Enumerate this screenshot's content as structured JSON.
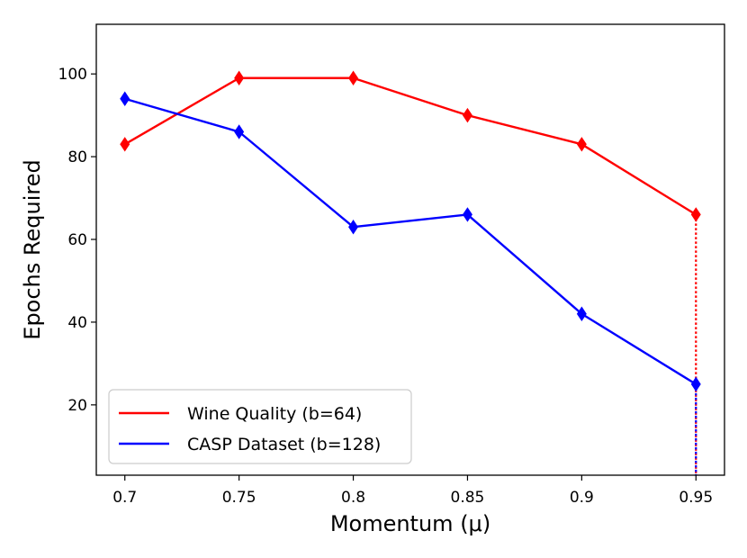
{
  "chart_data": {
    "type": "line",
    "title": "",
    "xlabel": "Momentum (μ)",
    "ylabel": "Epochs Required",
    "x": [
      0.7,
      0.75,
      0.8,
      0.85,
      0.9,
      0.95
    ],
    "x_tick_labels": [
      "0.7",
      "0.75",
      "0.8",
      "0.85",
      "0.9",
      "0.95"
    ],
    "y_ticks": [
      20,
      40,
      60,
      80,
      100
    ],
    "y_tick_labels": [
      "20",
      "40",
      "60",
      "80",
      "100"
    ],
    "xlim": [
      0.6875,
      0.9625
    ],
    "ylim": [
      3,
      112
    ],
    "grid": false,
    "legend_position": "lower-left",
    "series": [
      {
        "name": "Wine Quality (b=64)",
        "color": "#ff0000",
        "marker": "thin-diamond",
        "values": [
          83,
          99,
          99,
          90,
          83,
          66
        ],
        "dropline_at_last": true
      },
      {
        "name": "CASP Dataset (b=128)",
        "color": "#0000ff",
        "marker": "thin-diamond",
        "values": [
          94,
          86,
          63,
          66,
          42,
          25
        ],
        "dropline_at_last": true
      }
    ]
  }
}
